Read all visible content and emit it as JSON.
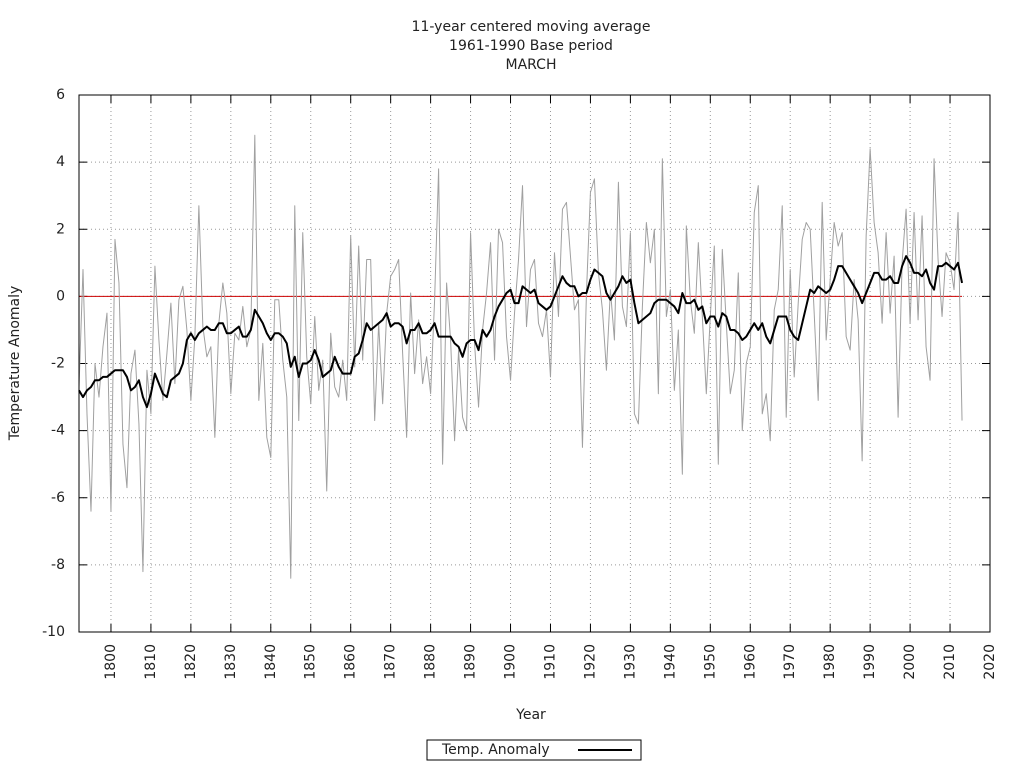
{
  "chart_data": {
    "type": "line",
    "title": [
      "11-year centered moving average",
      "1961-1990 Base period",
      "MARCH"
    ],
    "xlabel": "Year",
    "ylabel": "Temperature Anomaly",
    "x": [
      1792,
      1793,
      1794,
      1795,
      1796,
      1797,
      1798,
      1799,
      1800,
      1801,
      1802,
      1803,
      1804,
      1805,
      1806,
      1807,
      1808,
      1809,
      1810,
      1811,
      1812,
      1813,
      1814,
      1815,
      1816,
      1817,
      1818,
      1819,
      1820,
      1821,
      1822,
      1823,
      1824,
      1825,
      1826,
      1827,
      1828,
      1829,
      1830,
      1831,
      1832,
      1833,
      1834,
      1835,
      1836,
      1837,
      1838,
      1839,
      1840,
      1841,
      1842,
      1843,
      1844,
      1845,
      1846,
      1847,
      1848,
      1849,
      1850,
      1851,
      1852,
      1853,
      1854,
      1855,
      1856,
      1857,
      1858,
      1859,
      1860,
      1861,
      1862,
      1863,
      1864,
      1865,
      1866,
      1867,
      1868,
      1869,
      1870,
      1871,
      1872,
      1873,
      1874,
      1875,
      1876,
      1877,
      1878,
      1879,
      1880,
      1881,
      1882,
      1883,
      1884,
      1885,
      1886,
      1887,
      1888,
      1889,
      1890,
      1891,
      1892,
      1893,
      1894,
      1895,
      1896,
      1897,
      1898,
      1899,
      1900,
      1901,
      1902,
      1903,
      1904,
      1905,
      1906,
      1907,
      1908,
      1909,
      1910,
      1911,
      1912,
      1913,
      1914,
      1915,
      1916,
      1917,
      1918,
      1919,
      1920,
      1921,
      1922,
      1923,
      1924,
      1925,
      1926,
      1927,
      1928,
      1929,
      1930,
      1931,
      1932,
      1933,
      1934,
      1935,
      1936,
      1937,
      1938,
      1939,
      1940,
      1941,
      1942,
      1943,
      1944,
      1945,
      1946,
      1947,
      1948,
      1949,
      1950,
      1951,
      1952,
      1953,
      1954,
      1955,
      1956,
      1957,
      1958,
      1959,
      1960,
      1961,
      1962,
      1963,
      1964,
      1965,
      1966,
      1967,
      1968,
      1969,
      1970,
      1971,
      1972,
      1973,
      1974,
      1975,
      1976,
      1977,
      1978,
      1979,
      1980,
      1981,
      1982,
      1983,
      1984,
      1985,
      1986,
      1987,
      1988,
      1989,
      1990,
      1991,
      1992,
      1993,
      1994,
      1995,
      1996,
      1997,
      1998,
      1999,
      2000,
      2001,
      2002,
      2003,
      2004,
      2005,
      2006,
      2007,
      2008,
      2009,
      2010,
      2011,
      2012,
      2013
    ],
    "series": [
      {
        "color": "#a0a0a0",
        "values": [
          -2.7,
          0.8,
          -3.5,
          -6.4,
          -2.0,
          -3.0,
          -1.5,
          -0.5,
          -6.4,
          1.7,
          0.4,
          -4.4,
          -5.7,
          -2.3,
          -1.6,
          -3.8,
          -8.2,
          -2.2,
          -3.5,
          0.9,
          -1.3,
          -3.1,
          -1.7,
          -0.2,
          -2.6,
          -0.1,
          0.3,
          -1.0,
          -3.1,
          -1.2,
          2.7,
          -0.9,
          -1.8,
          -1.5,
          -4.2,
          -0.8,
          0.4,
          -0.5,
          -2.9,
          -1.1,
          -1.3,
          -0.3,
          -1.5,
          -1.0,
          4.8,
          -3.1,
          -1.4,
          -4.2,
          -4.8,
          -0.1,
          -0.1,
          -1.9,
          -3.0,
          -8.4,
          2.7,
          -3.7,
          1.9,
          -1.8,
          -3.2,
          -0.6,
          -2.8,
          -1.9,
          -5.8,
          -1.1,
          -2.7,
          -3.0,
          -1.9,
          -3.1,
          1.8,
          -2.1,
          1.5,
          -1.9,
          1.1,
          1.1,
          -3.7,
          -0.8,
          -3.2,
          -0.5,
          0.6,
          0.8,
          1.1,
          -1.7,
          -4.2,
          0.1,
          -2.3,
          -0.7,
          -2.6,
          -1.8,
          -2.9,
          -0.1,
          3.8,
          -5.0,
          0.4,
          -1.3,
          -4.3,
          -1.6,
          -3.6,
          -4.0,
          1.9,
          -1.4,
          -3.3,
          -1.0,
          0.1,
          1.6,
          -1.9,
          2.0,
          1.6,
          -1.2,
          -2.5,
          -0.5,
          1.1,
          3.3,
          -0.9,
          0.8,
          1.1,
          -0.8,
          -1.2,
          -0.4,
          -2.4,
          1.3,
          -0.6,
          2.6,
          2.8,
          1.2,
          -0.4,
          -0.1,
          -4.5,
          0.1,
          3.1,
          3.5,
          0.7,
          -0.4,
          -2.2,
          0.2,
          -1.3,
          3.4,
          -0.3,
          -0.9,
          1.9,
          -3.5,
          -3.8,
          -0.3,
          2.2,
          1.0,
          2.0,
          -2.9,
          4.1,
          -0.6,
          0.2,
          -2.8,
          -1.0,
          -5.3,
          2.1,
          -0.1,
          -1.1,
          1.6,
          -0.6,
          -2.9,
          -0.6,
          1.5,
          -5.0,
          1.4,
          -0.8,
          -2.9,
          -2.2,
          0.7,
          -4.0,
          -2.0,
          -1.5,
          2.5,
          3.3,
          -3.5,
          -2.9,
          -4.3,
          -0.4,
          0.2,
          2.7,
          -3.6,
          0.8,
          -2.4,
          -0.2,
          1.7,
          2.2,
          2.0,
          -0.5,
          -3.1,
          2.8,
          -1.3,
          0.5,
          2.2,
          1.5,
          1.9,
          -1.2,
          -1.6,
          0.5,
          -0.7,
          -4.9,
          1.8,
          4.4,
          2.2,
          1.3,
          -0.8,
          1.9,
          -0.5,
          1.2,
          -3.6,
          1.0,
          2.6,
          -0.8,
          2.5,
          -0.7,
          2.4,
          -1.5,
          -2.5,
          4.1,
          1.1,
          -0.6,
          1.3,
          1.0,
          0.2,
          2.5,
          -3.7
        ]
      },
      {
        "name": "Temp. Anomaly",
        "color": "#000000",
        "values": [
          -2.8,
          -3.0,
          -2.8,
          -2.7,
          -2.5,
          -2.5,
          -2.4,
          -2.4,
          -2.3,
          -2.2,
          -2.2,
          -2.2,
          -2.4,
          -2.8,
          -2.7,
          -2.5,
          -3.0,
          -3.3,
          -2.9,
          -2.3,
          -2.6,
          -2.9,
          -3.0,
          -2.5,
          -2.4,
          -2.3,
          -2.0,
          -1.3,
          -1.1,
          -1.3,
          -1.1,
          -1.0,
          -0.9,
          -1.0,
          -1.0,
          -0.8,
          -0.8,
          -1.1,
          -1.1,
          -1.0,
          -0.9,
          -1.2,
          -1.2,
          -1.0,
          -0.4,
          -0.6,
          -0.8,
          -1.1,
          -1.3,
          -1.1,
          -1.1,
          -1.2,
          -1.4,
          -2.1,
          -1.8,
          -2.4,
          -2.0,
          -2.0,
          -1.9,
          -1.6,
          -1.9,
          -2.4,
          -2.3,
          -2.2,
          -1.8,
          -2.1,
          -2.3,
          -2.3,
          -2.3,
          -1.8,
          -1.7,
          -1.3,
          -0.8,
          -1.0,
          -0.9,
          -0.8,
          -0.7,
          -0.5,
          -0.9,
          -0.8,
          -0.8,
          -0.9,
          -1.4,
          -1.0,
          -1.0,
          -0.8,
          -1.1,
          -1.1,
          -1.0,
          -0.8,
          -1.2,
          -1.2,
          -1.2,
          -1.2,
          -1.4,
          -1.5,
          -1.8,
          -1.4,
          -1.3,
          -1.3,
          -1.6,
          -1.0,
          -1.2,
          -1.0,
          -0.6,
          -0.3,
          -0.1,
          0.1,
          0.2,
          -0.2,
          -0.2,
          0.3,
          0.2,
          0.1,
          0.2,
          -0.2,
          -0.3,
          -0.4,
          -0.3,
          0.0,
          0.3,
          0.6,
          0.4,
          0.3,
          0.3,
          0.0,
          0.1,
          0.1,
          0.5,
          0.8,
          0.7,
          0.6,
          0.1,
          -0.1,
          0.1,
          0.3,
          0.6,
          0.4,
          0.5,
          -0.2,
          -0.8,
          -0.7,
          -0.6,
          -0.5,
          -0.2,
          -0.1,
          -0.1,
          -0.1,
          -0.2,
          -0.3,
          -0.5,
          0.1,
          -0.2,
          -0.2,
          -0.1,
          -0.4,
          -0.3,
          -0.8,
          -0.6,
          -0.6,
          -0.9,
          -0.5,
          -0.6,
          -1.0,
          -1.0,
          -1.1,
          -1.3,
          -1.2,
          -1.0,
          -0.8,
          -1.0,
          -0.8,
          -1.2,
          -1.4,
          -1.0,
          -0.6,
          -0.6,
          -0.6,
          -1.0,
          -1.2,
          -1.3,
          -0.8,
          -0.3,
          0.2,
          0.1,
          0.3,
          0.2,
          0.1,
          0.2,
          0.5,
          0.9,
          0.9,
          0.7,
          0.5,
          0.3,
          0.1,
          -0.2,
          0.1,
          0.4,
          0.7,
          0.7,
          0.5,
          0.5,
          0.6,
          0.4,
          0.4,
          0.9,
          1.2,
          1.0,
          0.7,
          0.7,
          0.6,
          0.8,
          0.4,
          0.2,
          0.9,
          0.9,
          1.0,
          0.9,
          0.8,
          1.0,
          0.4
        ]
      }
    ],
    "reference_line": {
      "value": 0,
      "color": "#cc0000"
    },
    "xlim": [
      1792,
      2020
    ],
    "xticks": [
      1800,
      1810,
      1820,
      1830,
      1840,
      1850,
      1860,
      1870,
      1880,
      1890,
      1900,
      1910,
      1920,
      1930,
      1940,
      1950,
      1960,
      1970,
      1980,
      1990,
      2000,
      2010,
      2020
    ],
    "ylim": [
      -10,
      6
    ],
    "yticks": [
      -10,
      -8,
      -6,
      -4,
      -2,
      0,
      2,
      4,
      6
    ],
    "grid": true,
    "legend": "bottom"
  }
}
